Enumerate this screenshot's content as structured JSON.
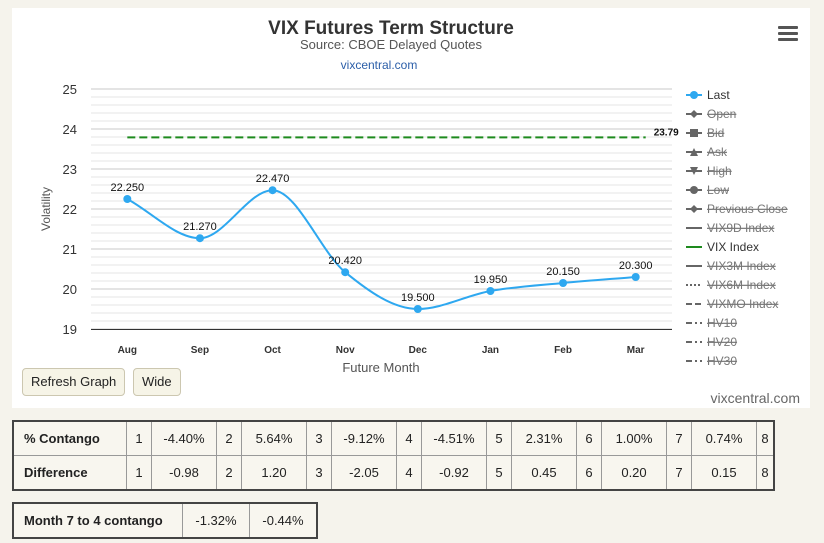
{
  "chart_data": {
    "type": "line",
    "title": "VIX Futures Term Structure",
    "subtitle": "Source: CBOE Delayed Quotes",
    "subtitle_link": "vixcentral.com",
    "xlabel": "Future Month",
    "ylabel": "Volatility",
    "categories": [
      "Aug",
      "Sep",
      "Oct",
      "Nov",
      "Dec",
      "Jan",
      "Feb",
      "Mar"
    ],
    "ylim": [
      19,
      25
    ],
    "yticks": [
      "25",
      "24",
      "23",
      "22",
      "21",
      "20",
      "19"
    ],
    "grid": true,
    "legend_position": "right",
    "series": [
      {
        "name": "Last",
        "values": [
          22.25,
          21.27,
          22.47,
          20.42,
          19.5,
          19.95,
          20.15,
          20.3
        ],
        "labels": [
          "22.250",
          "21.270",
          "22.470",
          "20.420",
          "19.500",
          "19.950",
          "20.150",
          "20.300"
        ],
        "color": "#2ea8f0"
      },
      {
        "name": "VIX Index",
        "value": 23.79,
        "label": "23.79",
        "color": "#1e8a1e",
        "style": "dashed"
      }
    ],
    "legend": [
      {
        "name": "Last",
        "marker": "circle",
        "line": "solid",
        "active": true,
        "color": "#2ea8f0"
      },
      {
        "name": "Open",
        "marker": "diamond",
        "line": "solid",
        "active": false,
        "color": "#666666"
      },
      {
        "name": "Bid",
        "marker": "square",
        "line": "solid",
        "active": false,
        "color": "#666666"
      },
      {
        "name": "Ask",
        "marker": "triangle",
        "line": "solid",
        "active": false,
        "color": "#666666"
      },
      {
        "name": "High",
        "marker": "triangle-down",
        "line": "solid",
        "active": false,
        "color": "#666666"
      },
      {
        "name": "Low",
        "marker": "circle",
        "line": "solid",
        "active": false,
        "color": "#666666"
      },
      {
        "name": "Previous Close",
        "marker": "diamond",
        "line": "solid",
        "active": false,
        "color": "#666666"
      },
      {
        "name": "VIX9D Index",
        "marker": "none",
        "line": "solid",
        "active": false,
        "color": "#666666"
      },
      {
        "name": "VIX Index",
        "marker": "none",
        "line": "solid",
        "active": true,
        "color": "#1e8a1e"
      },
      {
        "name": "VIX3M Index",
        "marker": "none",
        "line": "solid",
        "active": false,
        "color": "#666666"
      },
      {
        "name": "VIX6M Index",
        "marker": "none",
        "line": "dotted",
        "active": false,
        "color": "#666666"
      },
      {
        "name": "VIXMO Index",
        "marker": "none",
        "line": "dashed",
        "active": false,
        "color": "#666666"
      },
      {
        "name": "HV10",
        "marker": "none",
        "line": "dashdot",
        "active": false,
        "color": "#666666"
      },
      {
        "name": "HV20",
        "marker": "none",
        "line": "dashdot",
        "active": false,
        "color": "#666666"
      },
      {
        "name": "HV30",
        "marker": "none",
        "line": "dashdot",
        "active": false,
        "color": "#666666"
      }
    ]
  },
  "buttons": {
    "refresh": "Refresh Graph",
    "wide": "Wide"
  },
  "credit": "vixcentral.com",
  "contango_table": {
    "rows": [
      {
        "label": "% Contango",
        "cells": [
          "1",
          "-4.40%",
          "2",
          "5.64%",
          "3",
          "-9.12%",
          "4",
          "-4.51%",
          "5",
          "2.31%",
          "6",
          "1.00%",
          "7",
          "0.74%",
          "8"
        ]
      },
      {
        "label": "Difference",
        "cells": [
          "1",
          "-0.98",
          "2",
          "1.20",
          "3",
          "-2.05",
          "4",
          "-0.92",
          "5",
          "0.45",
          "6",
          "0.20",
          "7",
          "0.15",
          "8"
        ]
      }
    ]
  },
  "month74_table": {
    "label": "Month 7 to 4 contango",
    "values": [
      "-1.32%",
      "-0.44%"
    ]
  }
}
